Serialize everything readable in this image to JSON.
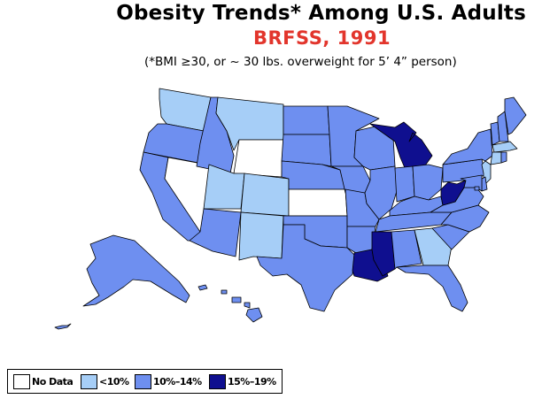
{
  "header": {
    "title": "Obesity Trends*  Among U.S. Adults",
    "subtitle": "BRFSS, 1991",
    "footnote": "(*BMI ≥30, or ~ 30 lbs. overweight for 5’ 4” person)"
  },
  "colors": {
    "no_data": "#ffffff",
    "lt10": "#a6cef7",
    "p10_14": "#6e8ff0",
    "p15_19": "#0f0f8f",
    "subtitle": "#e2352c"
  },
  "legend": {
    "items": [
      {
        "key": "no_data",
        "label": "No Data"
      },
      {
        "key": "lt10",
        "label": "<10%"
      },
      {
        "key": "p10_14",
        "label": "10%–14%"
      },
      {
        "key": "p15_19",
        "label": "15%–19%"
      }
    ]
  },
  "states": {
    "WA": "lt10",
    "OR": "p10_14",
    "CA": "p10_14",
    "NV": "no_data",
    "ID": "p10_14",
    "MT": "lt10",
    "WY": "no_data",
    "UT": "lt10",
    "CO": "lt10",
    "AZ": "p10_14",
    "NM": "lt10",
    "ND": "p10_14",
    "SD": "p10_14",
    "NE": "p10_14",
    "KS": "no_data",
    "OK": "p10_14",
    "TX": "p10_14",
    "MN": "p10_14",
    "IA": "p10_14",
    "MO": "p10_14",
    "AR": "p10_14",
    "LA": "p15_19",
    "WI": "p10_14",
    "IL": "p10_14",
    "MI": "p15_19",
    "IN": "p10_14",
    "OH": "p10_14",
    "KY": "p10_14",
    "TN": "p10_14",
    "MS": "p15_19",
    "AL": "p10_14",
    "GA": "lt10",
    "FL": "p10_14",
    "SC": "p10_14",
    "NC": "p10_14",
    "VA": "p10_14",
    "WV": "p15_19",
    "PA": "p10_14",
    "NY": "p10_14",
    "VT": "p10_14",
    "NH": "p10_14",
    "ME": "p10_14",
    "MA": "lt10",
    "CT": "lt10",
    "RI": "p10_14",
    "NJ": "lt10",
    "DE": "p10_14",
    "MD": "p10_14",
    "DC": "p10_14",
    "AK": "p10_14",
    "HI": "p10_14"
  }
}
